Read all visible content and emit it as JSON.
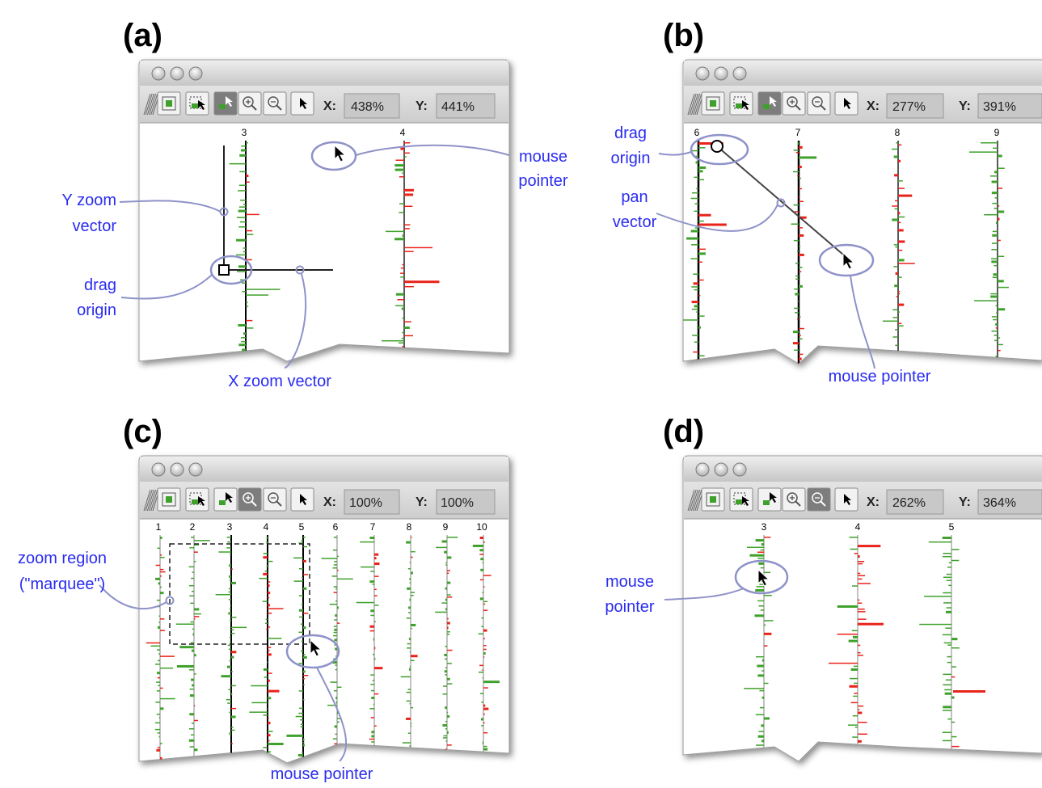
{
  "panels": [
    {
      "label": "(a)",
      "x_field": "438%",
      "y_field": "441%",
      "columns": [
        "3",
        "4"
      ],
      "active_tool": 2,
      "annotations": [
        "mouse",
        "pointer",
        "Y zoom",
        "vector",
        "drag",
        "origin",
        "X zoom vector"
      ]
    },
    {
      "label": "(b)",
      "x_field": "277%",
      "y_field": "391%",
      "columns": [
        "6",
        "7",
        "8",
        "9"
      ],
      "active_tool": 2,
      "annotations": [
        "drag",
        "origin",
        "pan",
        "vector",
        "mouse pointer"
      ]
    },
    {
      "label": "(c)",
      "x_field": "100%",
      "y_field": "100%",
      "columns": [
        "1",
        "2",
        "3",
        "4",
        "5",
        "6",
        "7",
        "8",
        "9",
        "10"
      ],
      "active_tool": 3,
      "annotations": [
        "zoom region",
        "(\"marquee\")",
        "mouse pointer"
      ]
    },
    {
      "label": "(d)",
      "x_field": "262%",
      "y_field": "364%",
      "columns": [
        "3",
        "4",
        "5"
      ],
      "active_tool": 4,
      "annotations": [
        "mouse",
        "pointer"
      ]
    }
  ],
  "toolbar": {
    "x_label": "X:",
    "y_label": "Y:",
    "tools": [
      "fit-view-icon",
      "marquee-zoom-icon",
      "pan-icon",
      "zoom-in-icon",
      "zoom-out-icon",
      "select-pointer-icon"
    ]
  },
  "colors": {
    "annotation": "#2a2cf0",
    "callout": "#8e92c8",
    "up_bar": "#3fa12b",
    "down_bar": "#e8231a",
    "active_tool": "#7d7d7d"
  }
}
